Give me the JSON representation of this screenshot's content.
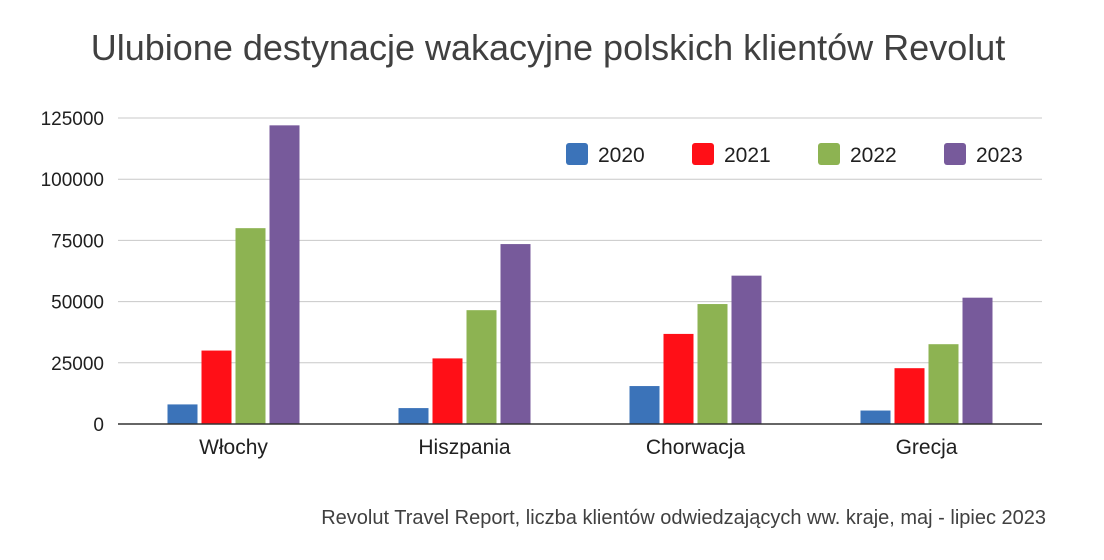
{
  "chart_data": {
    "type": "bar",
    "title": "Ulubione destynacje wakacyjne polskich klientów Revolut",
    "source_note": "Revolut Travel Report, liczba klientów odwiedzających ww. kraje, maj - lipiec 2023",
    "categories": [
      "Włochy",
      "Hiszpania",
      "Chorwacja",
      "Grecja"
    ],
    "series": [
      {
        "name": "2020",
        "color": "#3b73b9",
        "values": [
          8000,
          6500,
          15500,
          5500
        ]
      },
      {
        "name": "2021",
        "color": "#ff0f17",
        "values": [
          30000,
          26800,
          36800,
          22800
        ]
      },
      {
        "name": "2022",
        "color": "#8db352",
        "values": [
          80000,
          46500,
          49000,
          32600
        ]
      },
      {
        "name": "2023",
        "color": "#775a9b",
        "values": [
          122000,
          73500,
          60600,
          51600
        ]
      }
    ],
    "y_ticks": [
      "0",
      "25000",
      "50000",
      "75000",
      "100000",
      "125000"
    ],
    "ylim": [
      0,
      125000
    ],
    "grid": true,
    "legend_position": "top-right"
  }
}
